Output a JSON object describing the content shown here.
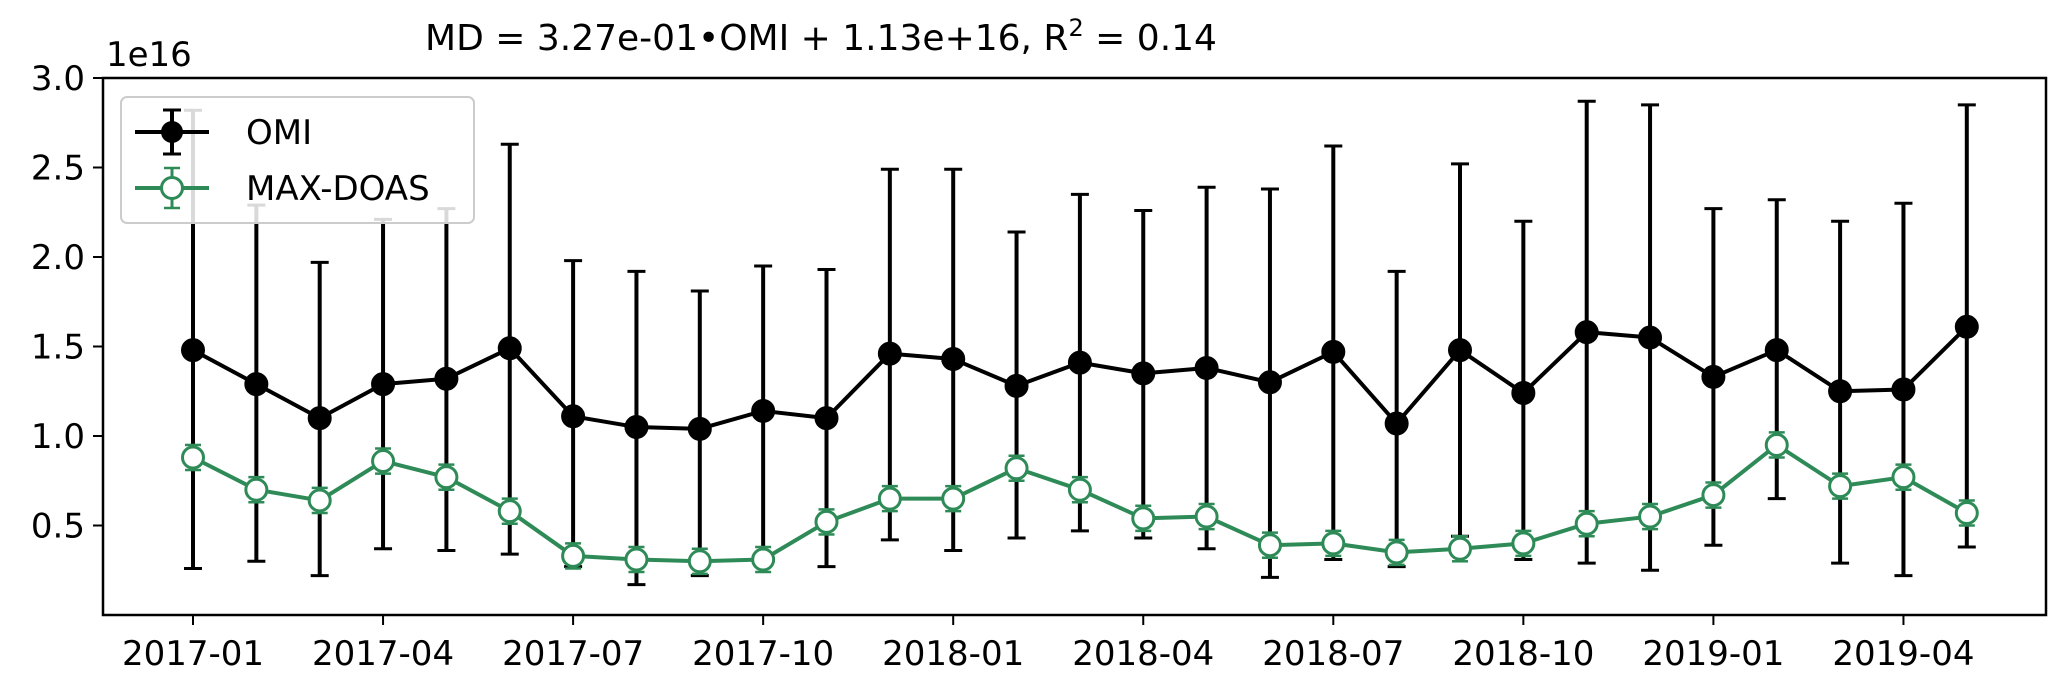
{
  "chart_data": {
    "type": "line",
    "title_prefix": "MD = 3.27e-01•OMI + 1.13e+16, R",
    "title_sup": "2",
    "title_suffix": " = 0.14",
    "offset_label": "1e16",
    "xlabel": "",
    "ylabel": "",
    "ylim": [
      0.0,
      3.0
    ],
    "y_ticks": [
      0.5,
      1.0,
      1.5,
      2.0,
      2.5,
      3.0
    ],
    "y_tick_labels": [
      "0.5",
      "1.0",
      "1.5",
      "2.0",
      "2.5",
      "3.0"
    ],
    "x_start": "2017-01",
    "x_ticks": [
      "2017-01",
      "2017-04",
      "2017-07",
      "2017-10",
      "2018-01",
      "2018-04",
      "2018-07",
      "2018-10",
      "2019-01",
      "2019-04"
    ],
    "x": [
      "2017-01",
      "2017-02",
      "2017-03",
      "2017-04",
      "2017-05",
      "2017-06",
      "2017-07",
      "2017-08",
      "2017-09",
      "2017-10",
      "2017-11",
      "2017-12",
      "2018-01",
      "2018-02",
      "2018-03",
      "2018-04",
      "2018-05",
      "2018-06",
      "2018-07",
      "2018-08",
      "2018-09",
      "2018-10",
      "2018-11",
      "2018-12",
      "2019-01",
      "2019-02",
      "2019-03",
      "2019-04",
      "2019-05"
    ],
    "legend_position": "upper left",
    "grid": false,
    "series": [
      {
        "name": "OMI",
        "color": "#000000",
        "marker": "filled-circle",
        "values": [
          1.48,
          1.29,
          1.1,
          1.29,
          1.32,
          1.49,
          1.11,
          1.05,
          1.04,
          1.14,
          1.1,
          1.46,
          1.43,
          1.28,
          1.41,
          1.35,
          1.38,
          1.3,
          1.47,
          1.07,
          1.48,
          1.24,
          1.58,
          1.55,
          1.33,
          1.48,
          1.25,
          1.26,
          1.61
        ],
        "err_low": [
          0.26,
          0.3,
          0.22,
          0.37,
          0.36,
          0.34,
          0.27,
          0.17,
          0.22,
          0.33,
          0.27,
          0.42,
          0.36,
          0.43,
          0.47,
          0.43,
          0.37,
          0.21,
          0.31,
          0.27,
          0.44,
          0.31,
          0.29,
          0.25,
          0.39,
          0.65,
          0.29,
          0.22,
          0.38
        ],
        "err_high": [
          2.82,
          2.29,
          1.97,
          2.21,
          2.27,
          2.63,
          1.98,
          1.92,
          1.81,
          1.95,
          1.93,
          2.49,
          2.49,
          2.14,
          2.35,
          2.26,
          2.39,
          2.38,
          2.62,
          1.92,
          2.52,
          2.2,
          2.87,
          2.85,
          2.27,
          2.32,
          2.2,
          2.3,
          2.85
        ]
      },
      {
        "name": "MAX-DOAS",
        "color": "#2e8b57",
        "marker": "open-circle",
        "values": [
          0.88,
          0.7,
          0.64,
          0.86,
          0.77,
          0.58,
          0.33,
          0.31,
          0.3,
          0.31,
          0.52,
          0.65,
          0.65,
          0.82,
          0.7,
          0.54,
          0.55,
          0.39,
          0.4,
          0.35,
          0.37,
          0.4,
          0.51,
          0.55,
          0.67,
          0.95,
          0.72,
          0.77,
          0.57
        ]
      }
    ]
  }
}
